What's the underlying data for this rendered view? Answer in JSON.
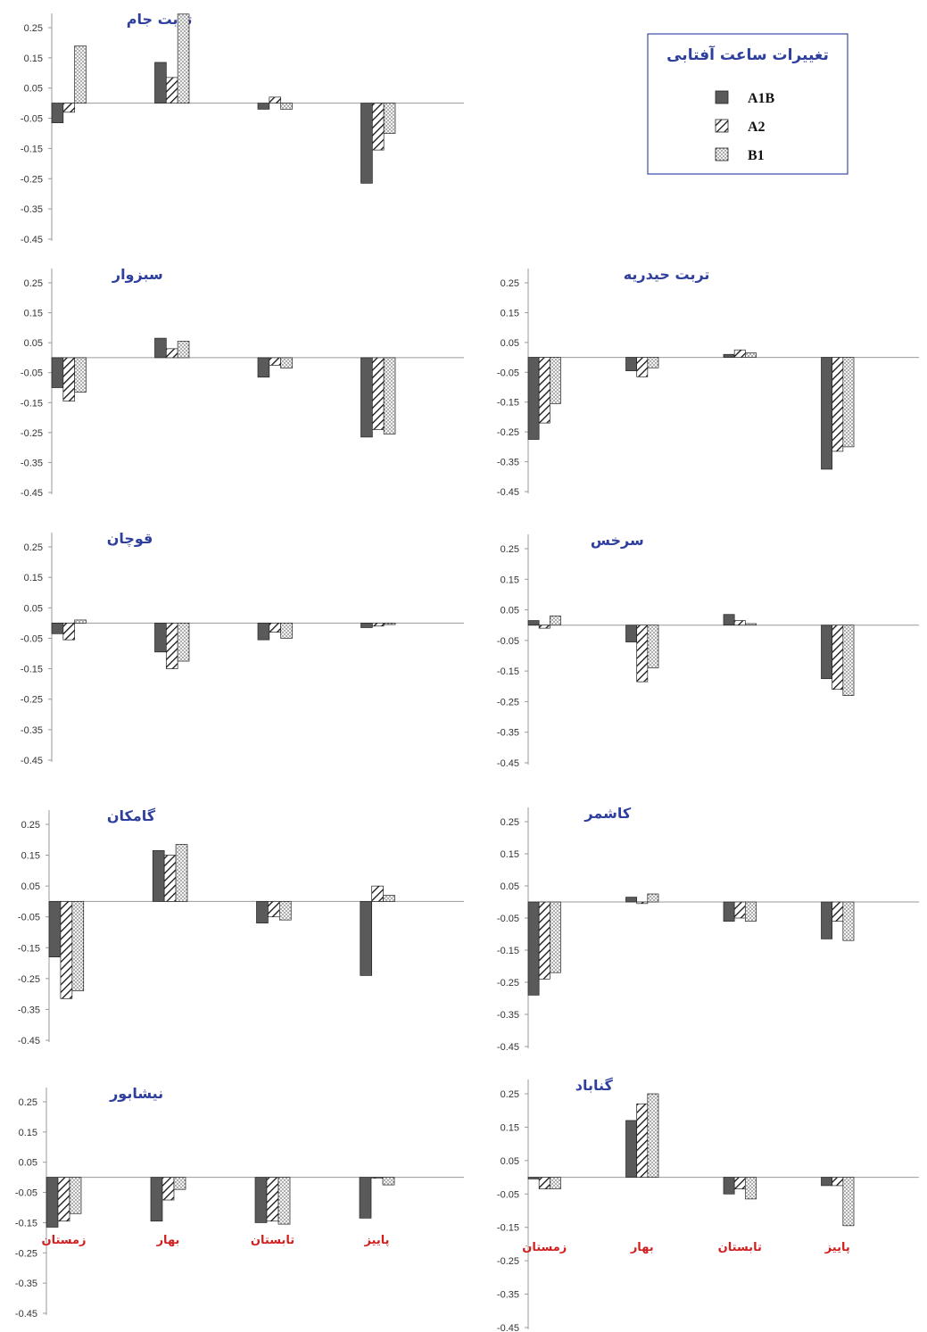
{
  "legend": {
    "title": "تغییرات ساعت آفتابی",
    "items": [
      {
        "name": "A1B",
        "pattern": "solid"
      },
      {
        "name": "A2",
        "pattern": "hatch"
      },
      {
        "name": "B1",
        "pattern": "dots"
      }
    ]
  },
  "colors": {
    "solid": "#5a5a5a",
    "stroke": "#222222",
    "axis": "#999999",
    "title": "#2f3f9e",
    "season": "#d01f1f"
  },
  "chart_data": [
    {
      "type": "bar",
      "title": "تربت جام",
      "categories": [
        "زمستان",
        "بهار",
        "تابستان",
        "پاییز"
      ],
      "category_labels_shown": false,
      "ylim": [
        -0.45,
        0.25
      ],
      "yticks": [
        "0.25",
        "0.15",
        "0.05",
        "-0.05",
        "-0.15",
        "-0.25",
        "-0.35",
        "-0.45"
      ],
      "series": [
        {
          "name": "A1B",
          "values": [
            -0.065,
            0.135,
            -0.02,
            -0.265
          ]
        },
        {
          "name": "A2",
          "values": [
            -0.03,
            0.085,
            0.02,
            -0.155
          ]
        },
        {
          "name": "B1",
          "values": [
            0.19,
            0.295,
            -0.02,
            -0.1
          ]
        }
      ]
    },
    {
      "type": "bar",
      "title": "سبزوار",
      "categories": [
        "زمستان",
        "بهار",
        "تابستان",
        "پاییز"
      ],
      "category_labels_shown": false,
      "ylim": [
        -0.45,
        0.25
      ],
      "yticks": [
        "0.25",
        "0.15",
        "0.05",
        "-0.05",
        "-0.15",
        "-0.25",
        "-0.35",
        "-0.45"
      ],
      "series": [
        {
          "name": "A1B",
          "values": [
            -0.1,
            0.065,
            -0.065,
            -0.265
          ]
        },
        {
          "name": "A2",
          "values": [
            -0.145,
            0.03,
            -0.025,
            -0.24
          ]
        },
        {
          "name": "B1",
          "values": [
            -0.115,
            0.055,
            -0.035,
            -0.255
          ]
        }
      ]
    },
    {
      "type": "bar",
      "title": "تربت حیدریه",
      "categories": [
        "زمستان",
        "بهار",
        "تابستان",
        "پاییز"
      ],
      "category_labels_shown": false,
      "ylim": [
        -0.45,
        0.25
      ],
      "yticks": [
        "0.25",
        "0.15",
        "0.05",
        "-0.05",
        "-0.15",
        "-0.25",
        "-0.35",
        "-0.45"
      ],
      "series": [
        {
          "name": "A1B",
          "values": [
            -0.275,
            -0.045,
            0.01,
            -0.375
          ]
        },
        {
          "name": "A2",
          "values": [
            -0.22,
            -0.065,
            0.025,
            -0.315
          ]
        },
        {
          "name": "B1",
          "values": [
            -0.155,
            -0.035,
            0.015,
            -0.3
          ]
        }
      ]
    },
    {
      "type": "bar",
      "title": "قوچان",
      "categories": [
        "زمستان",
        "بهار",
        "تابستان",
        "پاییز"
      ],
      "category_labels_shown": false,
      "ylim": [
        -0.45,
        0.25
      ],
      "yticks": [
        "0.25",
        "0.15",
        "0.05",
        "-0.05",
        "-0.15",
        "-0.25",
        "-0.35",
        "-0.45"
      ],
      "series": [
        {
          "name": "A1B",
          "values": [
            -0.035,
            -0.095,
            -0.055,
            -0.015
          ]
        },
        {
          "name": "A2",
          "values": [
            -0.055,
            -0.15,
            -0.03,
            -0.01
          ]
        },
        {
          "name": "B1",
          "values": [
            0.01,
            -0.125,
            -0.05,
            -0.005
          ]
        }
      ]
    },
    {
      "type": "bar",
      "title": "سرخس",
      "categories": [
        "زمستان",
        "بهار",
        "تابستان",
        "پاییز"
      ],
      "category_labels_shown": false,
      "ylim": [
        -0.45,
        0.25
      ],
      "yticks": [
        "0.25",
        "0.15",
        "0.05",
        "-0.05",
        "-0.15",
        "-0.25",
        "-0.35",
        "-0.45"
      ],
      "series": [
        {
          "name": "A1B",
          "values": [
            0.015,
            -0.055,
            0.035,
            -0.175
          ]
        },
        {
          "name": "A2",
          "values": [
            -0.01,
            -0.185,
            0.015,
            -0.21
          ]
        },
        {
          "name": "B1",
          "values": [
            0.03,
            -0.14,
            0.005,
            -0.23
          ]
        }
      ]
    },
    {
      "type": "bar",
      "title": "گامکان",
      "categories": [
        "زمستان",
        "بهار",
        "تابستان",
        "پاییز"
      ],
      "category_labels_shown": false,
      "ylim": [
        -0.45,
        0.25
      ],
      "yticks": [
        "0.25",
        "0.15",
        "0.05",
        "-0.05",
        "-0.15",
        "-0.25",
        "-0.35",
        "-0.45"
      ],
      "series": [
        {
          "name": "A1B",
          "values": [
            -0.18,
            0.165,
            -0.07,
            -0.24
          ]
        },
        {
          "name": "A2",
          "values": [
            -0.315,
            0.15,
            -0.05,
            0.05
          ]
        },
        {
          "name": "B1",
          "values": [
            -0.29,
            0.185,
            -0.06,
            0.02
          ]
        }
      ]
    },
    {
      "type": "bar",
      "title": "کاشمر",
      "categories": [
        "زمستان",
        "بهار",
        "تابستان",
        "پاییز"
      ],
      "category_labels_shown": false,
      "ylim": [
        -0.45,
        0.25
      ],
      "yticks": [
        "0.25",
        "0.15",
        "0.05",
        "-0.05",
        "-0.15",
        "-0.25",
        "-0.35",
        "-0.45"
      ],
      "series": [
        {
          "name": "A1B",
          "values": [
            -0.29,
            0.015,
            -0.06,
            -0.115
          ]
        },
        {
          "name": "A2",
          "values": [
            -0.24,
            -0.005,
            -0.05,
            -0.06
          ]
        },
        {
          "name": "B1",
          "values": [
            -0.22,
            0.025,
            -0.06,
            -0.12
          ]
        }
      ]
    },
    {
      "type": "bar",
      "title": "نیشابور",
      "categories": [
        "زمستان",
        "بهار",
        "تابستان",
        "پاییز"
      ],
      "category_labels_shown": true,
      "ylim": [
        -0.45,
        0.25
      ],
      "yticks": [
        "0.25",
        "0.15",
        "0.05",
        "-0.05",
        "-0.15",
        "-0.25",
        "-0.35",
        "-0.45"
      ],
      "series": [
        {
          "name": "A1B",
          "values": [
            -0.165,
            -0.145,
            -0.15,
            -0.135
          ]
        },
        {
          "name": "A2",
          "values": [
            -0.145,
            -0.075,
            -0.145,
            0.0
          ]
        },
        {
          "name": "B1",
          "values": [
            -0.12,
            -0.04,
            -0.155,
            -0.025
          ]
        }
      ]
    },
    {
      "type": "bar",
      "title": "گناباد",
      "categories": [
        "زمستان",
        "بهار",
        "تابستان",
        "پاییز"
      ],
      "category_labels_shown": true,
      "ylim": [
        -0.45,
        0.25
      ],
      "yticks": [
        "0.25",
        "0.15",
        "0.05",
        "-0.05",
        "-0.15",
        "-0.25",
        "-0.35",
        "-0.45"
      ],
      "series": [
        {
          "name": "A1B",
          "values": [
            -0.005,
            0.17,
            -0.05,
            -0.025
          ]
        },
        {
          "name": "A2",
          "values": [
            -0.035,
            0.22,
            -0.035,
            -0.025
          ]
        },
        {
          "name": "B1",
          "values": [
            -0.035,
            0.25,
            -0.065,
            -0.145
          ]
        }
      ]
    }
  ]
}
